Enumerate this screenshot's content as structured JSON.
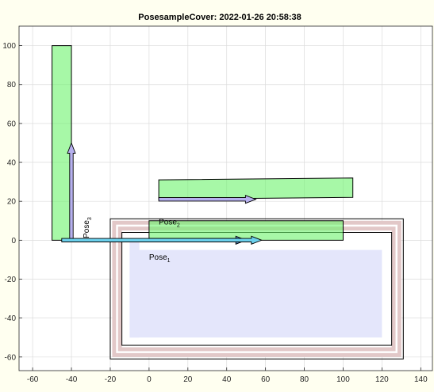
{
  "chart_data": {
    "type": "diagram-plot",
    "title": "PosesampleCover: 2022-01-26 20:58:38",
    "xlabel": "",
    "ylabel": "",
    "xlim": [
      -67,
      146
    ],
    "ylim": [
      -67,
      110
    ],
    "xticks": [
      -60,
      -40,
      -20,
      0,
      20,
      40,
      60,
      80,
      100,
      120,
      140
    ],
    "yticks": [
      -60,
      -40,
      -20,
      0,
      20,
      40,
      60,
      80,
      100
    ],
    "grid": true,
    "boundary": {
      "outer_box": {
        "x0": -20,
        "y0": -61,
        "x1": 131,
        "y1": 11
      },
      "inner_box": {
        "x0": -14,
        "y0": -54,
        "x1": 125,
        "y1": 4
      }
    },
    "cover_bands": [
      {
        "x0": -19,
        "y0": -60,
        "x1": 130,
        "y1": 10,
        "color": "#e2c8c8"
      },
      {
        "x0": -17,
        "y0": -58,
        "x1": 128,
        "y1": 8,
        "color": "#ffffff"
      },
      {
        "x0": -16,
        "y0": -57,
        "x1": 127,
        "y1": 7,
        "color": "#e2c8c8"
      },
      {
        "x0": -14,
        "y0": -55,
        "x1": 125,
        "y1": 5,
        "color": "#ffffff"
      },
      {
        "x0": -10,
        "y0": -50,
        "x1": 120,
        "y1": -5,
        "color": "#e4e6fb"
      },
      {
        "x0": -10,
        "y0": -50,
        "x1": -5,
        "y1": 0,
        "color": "#e4e6fb"
      }
    ],
    "footprints": [
      {
        "name": "Pose_2",
        "corners": [
          [
            5,
            21
          ],
          [
            105,
            22
          ],
          [
            105,
            32
          ],
          [
            5,
            31
          ]
        ]
      },
      {
        "name": "Pose_1",
        "corners": [
          [
            0,
            0
          ],
          [
            100,
            0
          ],
          [
            100,
            10
          ],
          [
            0,
            10
          ]
        ]
      },
      {
        "name": "Pose_3",
        "corners": [
          [
            -50,
            0
          ],
          [
            -40,
            0
          ],
          [
            -40,
            100
          ],
          [
            -50,
            100
          ]
        ]
      }
    ],
    "arrows": [
      {
        "from": [
          5,
          21
        ],
        "to": [
          55,
          21
        ],
        "color": "#b6b0ee"
      },
      {
        "from": [
          0,
          0
        ],
        "to": [
          50,
          0
        ],
        "color": "#5b9bd9"
      },
      {
        "from": [
          -40,
          0
        ],
        "to": [
          -40,
          50
        ],
        "color": "#b6b0ee"
      },
      {
        "from": [
          -45,
          0
        ],
        "to": [
          58,
          0
        ],
        "color": "#6bd0ec"
      }
    ],
    "annotations": [
      {
        "base": "Pose",
        "sub": "2",
        "x": 5,
        "y": 8
      },
      {
        "base": "Pose",
        "sub": "1",
        "x": 0,
        "y": -10
      },
      {
        "base": "Pose",
        "sub": "3",
        "x": -31,
        "y": 1,
        "rotate": true
      }
    ]
  }
}
